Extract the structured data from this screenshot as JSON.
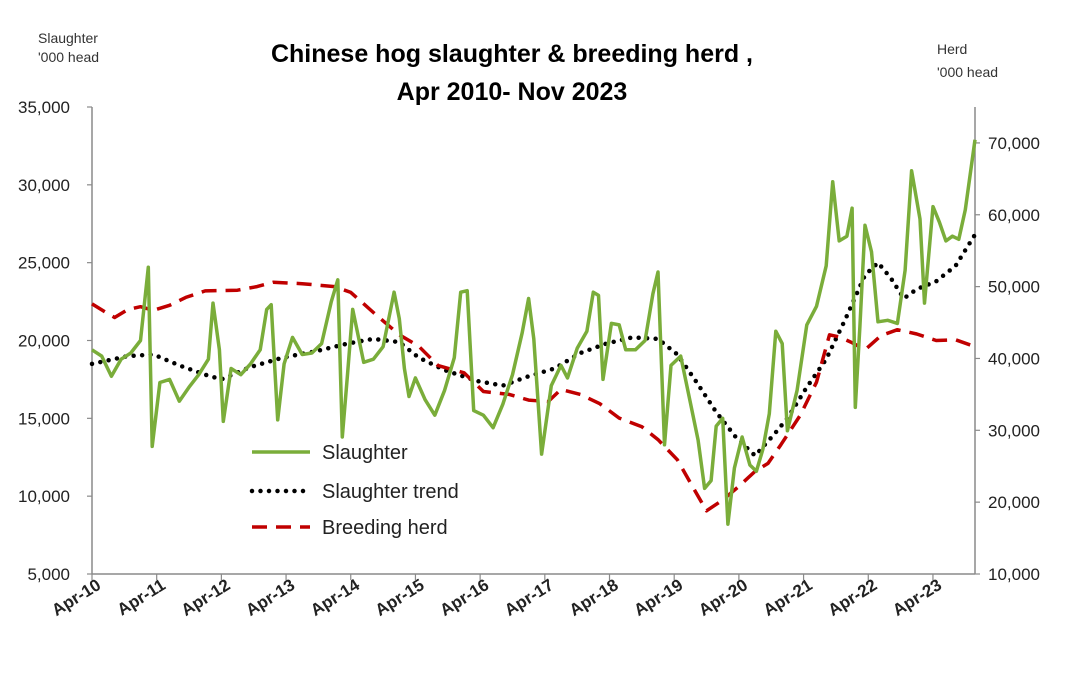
{
  "chart_data": {
    "type": "line",
    "title_line1": "Chinese hog slaughter & breeding herd ,",
    "title_line2": "Apr 2010- Nov 2023",
    "left_axis": {
      "unit_line1": "Slaughter",
      "unit_line2": "'000 head",
      "min": 5000,
      "max": 35000,
      "step": 5000
    },
    "right_axis": {
      "unit_line1": "Herd",
      "unit_line2": "'000 head",
      "min": 10000,
      "max": 75000,
      "step": 10000
    },
    "x_range": [
      2010.25,
      2023.9
    ],
    "x_ticks": [
      {
        "label": "Apr-10",
        "x": 2010.25
      },
      {
        "label": "Apr-11",
        "x": 2011.25
      },
      {
        "label": "Apr-12",
        "x": 2012.25
      },
      {
        "label": "Apr-13",
        "x": 2013.25
      },
      {
        "label": "Apr-14",
        "x": 2014.25
      },
      {
        "label": "Apr-15",
        "x": 2015.25
      },
      {
        "label": "Apr-16",
        "x": 2016.25
      },
      {
        "label": "Apr-17",
        "x": 2017.25
      },
      {
        "label": "Apr-18",
        "x": 2018.25
      },
      {
        "label": "Apr-19",
        "x": 2019.25
      },
      {
        "label": "Apr-20",
        "x": 2020.25
      },
      {
        "label": "Apr-21",
        "x": 2021.25
      },
      {
        "label": "Apr-22",
        "x": 2022.25
      },
      {
        "label": "Apr-23",
        "x": 2023.25
      }
    ],
    "legend": {
      "position": "center-left"
    },
    "series": [
      {
        "name": "Slaughter",
        "axis": "left",
        "color": "#7aad3a",
        "style": "solid",
        "points": [
          [
            2010.25,
            19400
          ],
          [
            2010.4,
            19000
          ],
          [
            2010.55,
            17700
          ],
          [
            2010.7,
            18800
          ],
          [
            2010.85,
            19200
          ],
          [
            2011.0,
            20000
          ],
          [
            2011.12,
            24700
          ],
          [
            2011.18,
            13200
          ],
          [
            2011.3,
            17300
          ],
          [
            2011.45,
            17500
          ],
          [
            2011.6,
            16100
          ],
          [
            2011.75,
            17000
          ],
          [
            2011.9,
            17800
          ],
          [
            2012.05,
            18800
          ],
          [
            2012.12,
            22400
          ],
          [
            2012.22,
            19400
          ],
          [
            2012.28,
            14800
          ],
          [
            2012.4,
            18200
          ],
          [
            2012.55,
            17800
          ],
          [
            2012.7,
            18500
          ],
          [
            2012.85,
            19400
          ],
          [
            2012.95,
            22000
          ],
          [
            2013.02,
            22300
          ],
          [
            2013.12,
            14900
          ],
          [
            2013.22,
            18500
          ],
          [
            2013.35,
            20200
          ],
          [
            2013.5,
            19100
          ],
          [
            2013.65,
            19200
          ],
          [
            2013.8,
            19800
          ],
          [
            2013.95,
            22500
          ],
          [
            2014.05,
            23900
          ],
          [
            2014.12,
            13800
          ],
          [
            2014.2,
            17800
          ],
          [
            2014.28,
            22000
          ],
          [
            2014.45,
            18600
          ],
          [
            2014.6,
            18800
          ],
          [
            2014.75,
            19600
          ],
          [
            2014.92,
            23100
          ],
          [
            2015.0,
            21400
          ],
          [
            2015.08,
            18200
          ],
          [
            2015.15,
            16400
          ],
          [
            2015.25,
            17600
          ],
          [
            2015.4,
            16200
          ],
          [
            2015.55,
            15200
          ],
          [
            2015.7,
            16800
          ],
          [
            2015.85,
            18900
          ],
          [
            2015.95,
            23100
          ],
          [
            2016.05,
            23200
          ],
          [
            2016.15,
            15500
          ],
          [
            2016.3,
            15200
          ],
          [
            2016.45,
            14400
          ],
          [
            2016.6,
            15900
          ],
          [
            2016.75,
            17800
          ],
          [
            2016.9,
            20500
          ],
          [
            2017.0,
            22700
          ],
          [
            2017.08,
            20100
          ],
          [
            2017.2,
            12700
          ],
          [
            2017.35,
            17100
          ],
          [
            2017.5,
            18400
          ],
          [
            2017.6,
            17600
          ],
          [
            2017.75,
            19500
          ],
          [
            2017.9,
            20600
          ],
          [
            2018.0,
            23100
          ],
          [
            2018.08,
            22900
          ],
          [
            2018.15,
            17500
          ],
          [
            2018.28,
            21100
          ],
          [
            2018.4,
            21000
          ],
          [
            2018.5,
            19400
          ],
          [
            2018.65,
            19400
          ],
          [
            2018.8,
            20000
          ],
          [
            2018.92,
            23000
          ],
          [
            2019.0,
            24400
          ],
          [
            2019.1,
            13300
          ],
          [
            2019.2,
            18400
          ],
          [
            2019.35,
            19000
          ],
          [
            2019.5,
            16000
          ],
          [
            2019.62,
            13600
          ],
          [
            2019.72,
            10500
          ],
          [
            2019.82,
            11000
          ],
          [
            2019.9,
            14500
          ],
          [
            2020.0,
            15000
          ],
          [
            2020.08,
            8200
          ],
          [
            2020.18,
            11800
          ],
          [
            2020.3,
            13800
          ],
          [
            2020.42,
            12000
          ],
          [
            2020.52,
            11600
          ],
          [
            2020.62,
            13000
          ],
          [
            2020.72,
            15300
          ],
          [
            2020.82,
            20600
          ],
          [
            2020.92,
            19800
          ],
          [
            2021.0,
            14200
          ],
          [
            2021.15,
            16800
          ],
          [
            2021.3,
            21000
          ],
          [
            2021.45,
            22200
          ],
          [
            2021.6,
            24800
          ],
          [
            2021.7,
            30200
          ],
          [
            2021.8,
            26400
          ],
          [
            2021.92,
            26700
          ],
          [
            2022.0,
            28500
          ],
          [
            2022.05,
            15700
          ],
          [
            2022.12,
            20900
          ],
          [
            2022.2,
            27400
          ],
          [
            2022.3,
            25700
          ],
          [
            2022.4,
            21200
          ],
          [
            2022.55,
            21300
          ],
          [
            2022.7,
            21100
          ],
          [
            2022.82,
            24500
          ],
          [
            2022.92,
            30900
          ],
          [
            2023.05,
            27800
          ],
          [
            2023.12,
            22400
          ],
          [
            2023.25,
            28600
          ],
          [
            2023.35,
            27600
          ],
          [
            2023.45,
            26400
          ],
          [
            2023.55,
            26700
          ],
          [
            2023.65,
            26500
          ],
          [
            2023.75,
            28400
          ],
          [
            2023.9,
            32900
          ]
        ]
      },
      {
        "name": "Slaughter trend",
        "axis": "left",
        "color": "#000000",
        "style": "dotted",
        "points": [
          [
            2010.25,
            18500
          ],
          [
            2010.8,
            19000
          ],
          [
            2011.2,
            19100
          ],
          [
            2011.6,
            18400
          ],
          [
            2012.0,
            17800
          ],
          [
            2012.25,
            17500
          ],
          [
            2012.7,
            18300
          ],
          [
            2013.2,
            18900
          ],
          [
            2013.7,
            19300
          ],
          [
            2014.2,
            19800
          ],
          [
            2014.6,
            20100
          ],
          [
            2015.0,
            19900
          ],
          [
            2015.3,
            18900
          ],
          [
            2015.7,
            18100
          ],
          [
            2016.2,
            17400
          ],
          [
            2016.6,
            17100
          ],
          [
            2017.0,
            17700
          ],
          [
            2017.4,
            18200
          ],
          [
            2017.8,
            19200
          ],
          [
            2018.2,
            19800
          ],
          [
            2018.6,
            20200
          ],
          [
            2019.0,
            20100
          ],
          [
            2019.3,
            19100
          ],
          [
            2019.6,
            17300
          ],
          [
            2019.9,
            15400
          ],
          [
            2020.2,
            13800
          ],
          [
            2020.5,
            12600
          ],
          [
            2020.8,
            14000
          ],
          [
            2021.0,
            15000
          ],
          [
            2021.3,
            17000
          ],
          [
            2021.6,
            18800
          ],
          [
            2021.9,
            21400
          ],
          [
            2022.2,
            24200
          ],
          [
            2022.4,
            25000
          ],
          [
            2022.6,
            24000
          ],
          [
            2022.8,
            22700
          ],
          [
            2023.0,
            23300
          ],
          [
            2023.3,
            23800
          ],
          [
            2023.6,
            24800
          ],
          [
            2023.9,
            26800
          ]
        ]
      },
      {
        "name": "Breeding herd",
        "axis": "right",
        "color": "#c00000",
        "style": "dashed",
        "points": [
          [
            2010.25,
            47600
          ],
          [
            2010.45,
            46500
          ],
          [
            2010.6,
            45700
          ],
          [
            2010.8,
            46800
          ],
          [
            2011.0,
            47200
          ],
          [
            2011.2,
            46700
          ],
          [
            2011.45,
            47400
          ],
          [
            2011.7,
            48500
          ],
          [
            2012.0,
            49400
          ],
          [
            2012.5,
            49500
          ],
          [
            2012.8,
            50000
          ],
          [
            2013.05,
            50600
          ],
          [
            2013.5,
            50400
          ],
          [
            2014.0,
            50000
          ],
          [
            2014.25,
            49200
          ],
          [
            2014.6,
            46400
          ],
          [
            2015.0,
            43300
          ],
          [
            2015.3,
            41700
          ],
          [
            2015.6,
            39000
          ],
          [
            2016.0,
            38000
          ],
          [
            2016.3,
            35400
          ],
          [
            2016.7,
            35000
          ],
          [
            2017.0,
            34200
          ],
          [
            2017.3,
            34000
          ],
          [
            2017.5,
            35700
          ],
          [
            2017.8,
            35000
          ],
          [
            2018.1,
            33700
          ],
          [
            2018.4,
            31700
          ],
          [
            2018.75,
            30500
          ],
          [
            2019.0,
            28700
          ],
          [
            2019.3,
            25900
          ],
          [
            2019.5,
            22700
          ],
          [
            2019.75,
            18800
          ],
          [
            2020.0,
            20300
          ],
          [
            2020.25,
            22200
          ],
          [
            2020.5,
            24300
          ],
          [
            2020.7,
            25400
          ],
          [
            2020.9,
            28000
          ],
          [
            2021.2,
            32100
          ],
          [
            2021.45,
            36700
          ],
          [
            2021.65,
            43300
          ],
          [
            2021.8,
            43000
          ],
          [
            2022.0,
            42200
          ],
          [
            2022.2,
            41200
          ],
          [
            2022.45,
            43200
          ],
          [
            2022.7,
            44000
          ],
          [
            2023.0,
            43400
          ],
          [
            2023.3,
            42500
          ],
          [
            2023.6,
            42600
          ],
          [
            2023.85,
            41800
          ]
        ]
      }
    ]
  }
}
